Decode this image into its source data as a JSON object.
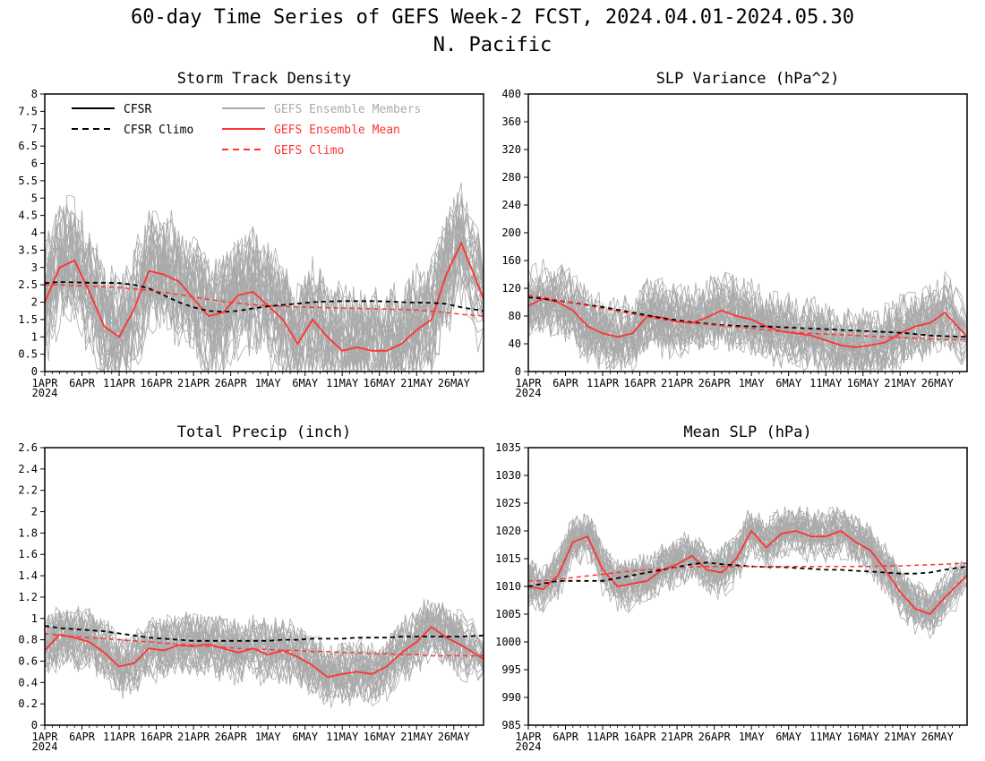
{
  "title_line1": "60-day Time Series of GEFS Week-2 FCST, 2024.04.01-2024.05.30",
  "title_line2": "N. Pacific",
  "colors": {
    "cfsr": "#000000",
    "members": "#aaaaaa",
    "mean": "#ff3333",
    "climo": "#ff3333"
  },
  "x_tick_labels": [
    "1APR",
    "6APR",
    "11APR",
    "16APR",
    "21APR",
    "26APR",
    "1MAY",
    "6MAY",
    "11MAY",
    "16MAY",
    "21MAY",
    "26MAY"
  ],
  "x_year_label": "2024",
  "legend": {
    "cfsr": "CFSR",
    "cfsr_climo": "CFSR Climo",
    "members": "GEFS Ensemble Members",
    "mean": "GEFS Ensemble Mean",
    "gefs_climo": "GEFS Climo"
  },
  "chart_data": [
    {
      "type": "line",
      "title": "Storm Track Density",
      "ylim": [
        0,
        8
      ],
      "yticks": [
        "0",
        "0.5",
        "1",
        "1.5",
        "2",
        "2.5",
        "3",
        "3.5",
        "4",
        "4.5",
        "5",
        "5.5",
        "6",
        "6.5",
        "7",
        "7.5",
        "8"
      ],
      "x": [
        "2024-04-01",
        "2024-04-03",
        "2024-04-05",
        "2024-04-07",
        "2024-04-09",
        "2024-04-11",
        "2024-04-13",
        "2024-04-15",
        "2024-04-17",
        "2024-04-19",
        "2024-04-21",
        "2024-04-23",
        "2024-04-25",
        "2024-04-27",
        "2024-04-29",
        "2024-05-01",
        "2024-05-03",
        "2024-05-05",
        "2024-05-07",
        "2024-05-09",
        "2024-05-11",
        "2024-05-13",
        "2024-05-15",
        "2024-05-17",
        "2024-05-19",
        "2024-05-21",
        "2024-05-23",
        "2024-05-25",
        "2024-05-27",
        "2024-05-30"
      ],
      "series": [
        {
          "name": "GEFS Ensemble Mean",
          "values": [
            2.0,
            3.0,
            3.2,
            2.3,
            1.3,
            1.0,
            1.8,
            2.9,
            2.8,
            2.6,
            2.1,
            1.6,
            1.7,
            2.2,
            2.3,
            1.9,
            1.5,
            0.8,
            1.5,
            1.0,
            0.6,
            0.7,
            0.6,
            0.6,
            0.8,
            1.2,
            1.5,
            2.8,
            3.7,
            2.1
          ]
        },
        {
          "name": "CFSR Climo",
          "values": [
            2.55,
            2.58,
            2.57,
            2.56,
            2.56,
            2.55,
            2.5,
            2.4,
            2.2,
            2.0,
            1.85,
            1.75,
            1.72,
            1.75,
            1.82,
            1.88,
            1.92,
            1.96,
            2.0,
            2.02,
            2.03,
            2.03,
            2.03,
            2.02,
            2.0,
            1.99,
            1.98,
            1.95,
            1.85,
            1.75
          ]
        },
        {
          "name": "GEFS Climo",
          "values": [
            2.5,
            2.5,
            2.48,
            2.46,
            2.44,
            2.42,
            2.38,
            2.34,
            2.28,
            2.22,
            2.15,
            2.08,
            2.02,
            1.97,
            1.93,
            1.9,
            1.88,
            1.86,
            1.85,
            1.84,
            1.83,
            1.82,
            1.81,
            1.8,
            1.79,
            1.77,
            1.74,
            1.7,
            1.65,
            1.6
          ]
        }
      ],
      "members": {
        "count": 31,
        "spread": 1.3
      }
    },
    {
      "type": "line",
      "title": "SLP Variance (hPa^2)",
      "ylim": [
        0,
        400
      ],
      "yticks": [
        "0",
        "40",
        "80",
        "120",
        "160",
        "200",
        "240",
        "280",
        "320",
        "360",
        "400"
      ],
      "x": [
        "2024-04-01",
        "2024-04-03",
        "2024-04-05",
        "2024-04-07",
        "2024-04-09",
        "2024-04-11",
        "2024-04-13",
        "2024-04-15",
        "2024-04-17",
        "2024-04-19",
        "2024-04-21",
        "2024-04-23",
        "2024-04-25",
        "2024-04-27",
        "2024-04-29",
        "2024-05-01",
        "2024-05-03",
        "2024-05-05",
        "2024-05-07",
        "2024-05-09",
        "2024-05-11",
        "2024-05-13",
        "2024-05-15",
        "2024-05-17",
        "2024-05-19",
        "2024-05-21",
        "2024-05-23",
        "2024-05-25",
        "2024-05-27",
        "2024-05-30"
      ],
      "series": [
        {
          "name": "GEFS Ensemble Mean",
          "values": [
            95,
            105,
            100,
            88,
            65,
            55,
            50,
            55,
            80,
            78,
            72,
            70,
            78,
            88,
            80,
            75,
            65,
            58,
            55,
            52,
            45,
            38,
            35,
            38,
            42,
            55,
            65,
            70,
            85,
            50
          ]
        },
        {
          "name": "CFSR Climo",
          "values": [
            107,
            105,
            102,
            99,
            96,
            93,
            89,
            85,
            81,
            77,
            74,
            71,
            69,
            67,
            66,
            65,
            65,
            64,
            63,
            62,
            61,
            60,
            59,
            58,
            57,
            56,
            54,
            52,
            51,
            50
          ]
        },
        {
          "name": "GEFS Climo",
          "values": [
            110,
            107,
            103,
            99,
            95,
            91,
            87,
            83,
            79,
            75,
            72,
            70,
            68,
            66,
            64,
            62,
            60,
            58,
            56,
            55,
            54,
            53,
            52,
            51,
            50,
            49,
            48,
            47,
            46,
            46
          ]
        }
      ],
      "members": {
        "count": 31,
        "spread": 40
      }
    },
    {
      "type": "line",
      "title": "Total Precip (inch)",
      "ylim": [
        0,
        2.6
      ],
      "yticks": [
        "0",
        "0.2",
        "0.4",
        "0.6",
        "0.8",
        "1",
        "1.2",
        "1.4",
        "1.6",
        "1.8",
        "2",
        "2.2",
        "2.4",
        "2.6"
      ],
      "x": [
        "2024-04-01",
        "2024-04-03",
        "2024-04-05",
        "2024-04-07",
        "2024-04-09",
        "2024-04-11",
        "2024-04-13",
        "2024-04-15",
        "2024-04-17",
        "2024-04-19",
        "2024-04-21",
        "2024-04-23",
        "2024-04-25",
        "2024-04-27",
        "2024-04-29",
        "2024-05-01",
        "2024-05-03",
        "2024-05-05",
        "2024-05-07",
        "2024-05-09",
        "2024-05-11",
        "2024-05-13",
        "2024-05-15",
        "2024-05-17",
        "2024-05-19",
        "2024-05-21",
        "2024-05-23",
        "2024-05-25",
        "2024-05-27",
        "2024-05-30"
      ],
      "series": [
        {
          "name": "GEFS Ensemble Mean",
          "values": [
            0.7,
            0.85,
            0.82,
            0.78,
            0.68,
            0.55,
            0.58,
            0.72,
            0.7,
            0.75,
            0.74,
            0.76,
            0.72,
            0.68,
            0.72,
            0.66,
            0.7,
            0.64,
            0.56,
            0.45,
            0.48,
            0.5,
            0.48,
            0.55,
            0.68,
            0.78,
            0.92,
            0.82,
            0.75,
            0.62
          ]
        },
        {
          "name": "CFSR Climo",
          "values": [
            0.93,
            0.91,
            0.9,
            0.89,
            0.88,
            0.86,
            0.84,
            0.82,
            0.81,
            0.8,
            0.79,
            0.79,
            0.79,
            0.79,
            0.79,
            0.79,
            0.8,
            0.8,
            0.81,
            0.81,
            0.81,
            0.82,
            0.82,
            0.82,
            0.83,
            0.83,
            0.83,
            0.83,
            0.83,
            0.84
          ]
        },
        {
          "name": "GEFS Climo",
          "values": [
            0.86,
            0.84,
            0.83,
            0.82,
            0.81,
            0.8,
            0.79,
            0.78,
            0.77,
            0.76,
            0.75,
            0.74,
            0.73,
            0.72,
            0.71,
            0.71,
            0.7,
            0.7,
            0.69,
            0.69,
            0.68,
            0.68,
            0.67,
            0.67,
            0.66,
            0.66,
            0.65,
            0.65,
            0.65,
            0.65
          ]
        }
      ],
      "members": {
        "count": 31,
        "spread": 0.22
      }
    },
    {
      "type": "line",
      "title": "Mean SLP (hPa)",
      "ylim": [
        985,
        1035
      ],
      "yticks": [
        "985",
        "990",
        "995",
        "1000",
        "1005",
        "1010",
        "1015",
        "1020",
        "1025",
        "1030",
        "1035"
      ],
      "x": [
        "2024-04-01",
        "2024-04-03",
        "2024-04-05",
        "2024-04-07",
        "2024-04-09",
        "2024-04-11",
        "2024-04-13",
        "2024-04-15",
        "2024-04-17",
        "2024-04-19",
        "2024-04-21",
        "2024-04-23",
        "2024-04-25",
        "2024-04-27",
        "2024-04-29",
        "2024-05-01",
        "2024-05-03",
        "2024-05-05",
        "2024-05-07",
        "2024-05-09",
        "2024-05-11",
        "2024-05-13",
        "2024-05-15",
        "2024-05-17",
        "2024-05-19",
        "2024-05-21",
        "2024-05-23",
        "2024-05-25",
        "2024-05-27",
        "2024-05-30"
      ],
      "series": [
        {
          "name": "GEFS Ensemble Mean",
          "values": [
            1010,
            1009.5,
            1012,
            1018,
            1019,
            1013,
            1010,
            1010.5,
            1011,
            1013,
            1014,
            1015.5,
            1013,
            1012.5,
            1015,
            1020,
            1017,
            1019.5,
            1020,
            1019,
            1019,
            1020,
            1018,
            1016.5,
            1013,
            1009,
            1006,
            1005,
            1008,
            1012
          ]
        },
        {
          "name": "CFSR Climo",
          "values": [
            1010,
            1010.5,
            1011,
            1011,
            1011,
            1011,
            1011.5,
            1012,
            1012.5,
            1013,
            1013.5,
            1014,
            1014.3,
            1014,
            1013.8,
            1013.6,
            1013.5,
            1013.5,
            1013.3,
            1013.2,
            1013,
            1013,
            1012.8,
            1012.7,
            1012.5,
            1012.3,
            1012.3,
            1012.5,
            1013,
            1013.6
          ]
        },
        {
          "name": "GEFS Climo",
          "values": [
            1011,
            1011,
            1011.3,
            1011.6,
            1011.9,
            1012.2,
            1012.5,
            1012.8,
            1013,
            1013.2,
            1013.4,
            1013.5,
            1013.6,
            1013.6,
            1013.6,
            1013.6,
            1013.6,
            1013.6,
            1013.6,
            1013.6,
            1013.6,
            1013.6,
            1013.6,
            1013.6,
            1013.7,
            1013.7,
            1013.8,
            1013.9,
            1014,
            1014.2
          ]
        }
      ],
      "members": {
        "count": 31,
        "spread": 3.5
      }
    }
  ]
}
